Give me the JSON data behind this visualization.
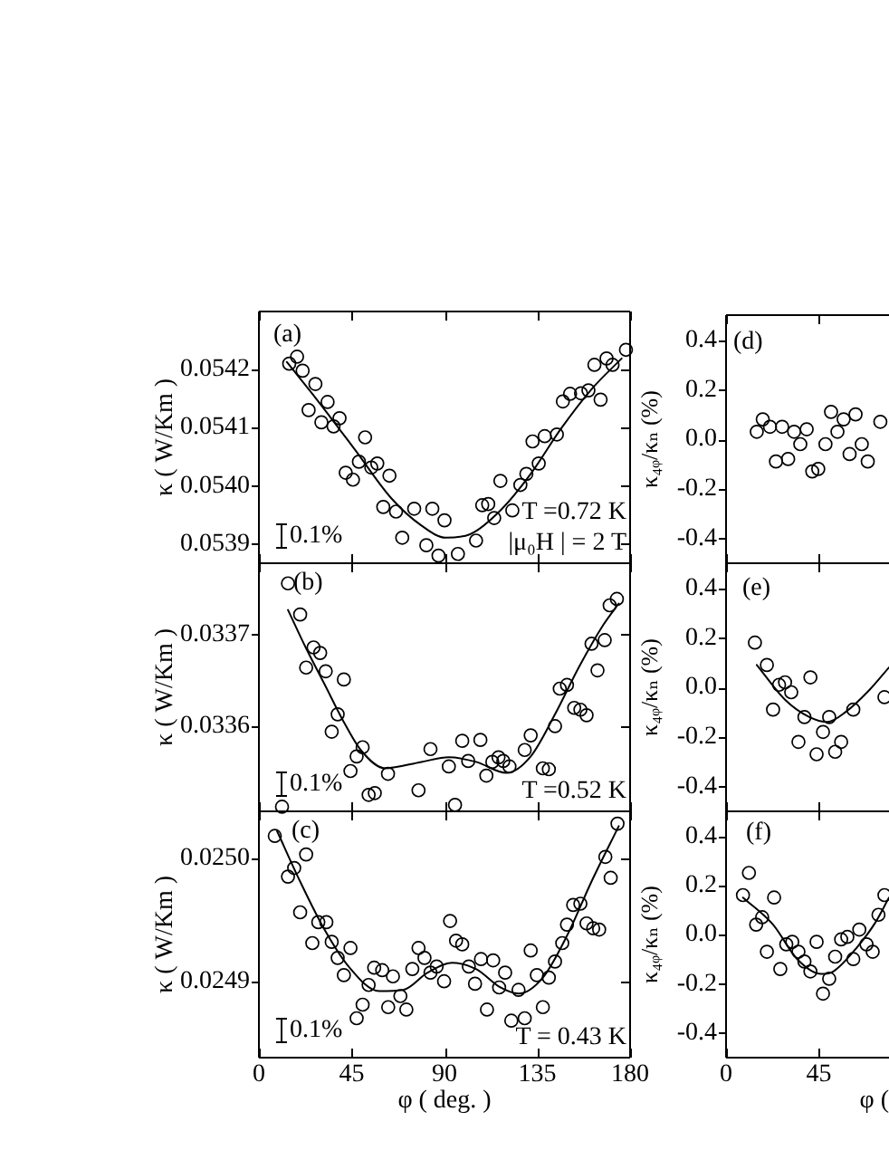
{
  "chart_data": [
    {
      "type": "scatter",
      "annotations": [
        "(a)",
        "0.1%",
        "T =0.72 K",
        "|μ₀H | = 2 T"
      ],
      "ylabel": "κ ( W/Km )",
      "xlim": [
        0,
        180
      ],
      "xticks": [
        0,
        45,
        90,
        135,
        180
      ],
      "ylim": [
        0.053866,
        0.0543
      ],
      "yticks": [
        0.0539,
        {
          "value": 0.054,
          "label": "0.0540"
        },
        0.0541,
        0.0542
      ],
      "tick_labels": "y",
      "marker": "circle",
      "series": [
        {
          "type": "scatter",
          "color": "#000000",
          "x": [
            14.7,
            18.5,
            21.2,
            24.1,
            27.4,
            30.3,
            33.3,
            36.2,
            39.1,
            42.1,
            45.6,
            48.5,
            51.5,
            54.5,
            57.4,
            60.3,
            63.3,
            66.5,
            69.5,
            75.3,
            81.2,
            84.1,
            87.1,
            90.0,
            96.5,
            105.3,
            108.3,
            111.2,
            114.1,
            117.1,
            122.9,
            126.8,
            129.7,
            132.7,
            135.7,
            138.6,
            144.5,
            147.4,
            150.9,
            156.2,
            159.8,
            162.7,
            165.7,
            168.6,
            171.5,
            178.0
          ],
          "values": [
            0.05421,
            0.054222,
            0.054198,
            0.05413,
            0.054175,
            0.054109,
            0.054144,
            0.054102,
            0.054116,
            0.054022,
            0.05401,
            0.054041,
            0.054083,
            0.054031,
            0.054038,
            0.053963,
            0.054017,
            0.053955,
            0.05391,
            0.05396,
            0.053897,
            0.05396,
            0.053879,
            0.05394,
            0.053882,
            0.053905,
            0.053966,
            0.053968,
            0.053944,
            0.054008,
            0.053957,
            0.054001,
            0.05402,
            0.054076,
            0.054038,
            0.054085,
            0.054088,
            0.054145,
            0.054158,
            0.054159,
            0.054164,
            0.054208,
            0.054148,
            0.054219,
            0.054208,
            0.054234
          ]
        },
        {
          "type": "line",
          "color": "#000000",
          "marker": "none",
          "x": [
            13.5,
            28.8,
            46.5,
            64.2,
            78.8,
            90.6,
            102.4,
            117.1,
            131.8,
            146.5,
            161.3,
            175.9
          ],
          "values": [
            0.054213,
            0.054145,
            0.054062,
            0.053978,
            0.053931,
            0.05391,
            0.053916,
            0.053957,
            0.05402,
            0.054098,
            0.054166,
            0.054219
          ]
        }
      ]
    },
    {
      "type": "scatter",
      "annotations": [
        "(b)",
        "0.1%",
        "T =0.52 K"
      ],
      "ylabel": "κ ( W/Km )",
      "xlim": [
        0,
        180
      ],
      "xticks": [
        0,
        45,
        90,
        135,
        180
      ],
      "ylim": [
        0.033507,
        0.033778
      ],
      "yticks": [
        0.0336,
        0.0337
      ],
      "tick_labels": "y",
      "marker": "circle",
      "series": [
        {
          "type": "scatter",
          "color": "#000000",
          "x": [
            11.2,
            14.1,
            20.0,
            22.9,
            26.5,
            29.7,
            32.4,
            35.3,
            38.2,
            41.2,
            44.4,
            47.4,
            50.3,
            53.2,
            56.2,
            62.6,
            77.4,
            83.2,
            92.1,
            95.1,
            98.6,
            101.5,
            107.4,
            110.3,
            113.2,
            116.2,
            118.5,
            121.5,
            128.9,
            131.8,
            137.7,
            140.6,
            143.6,
            145.9,
            149.4,
            152.9,
            155.9,
            158.9,
            161.3,
            164.2,
            167.7,
            170.1,
            173.6
          ],
          "values": [
            0.033512,
            0.033756,
            0.033722,
            0.033664,
            0.033686,
            0.03368,
            0.03366,
            0.033594,
            0.033613,
            0.033651,
            0.033551,
            0.033567,
            0.033577,
            0.033525,
            0.033527,
            0.033548,
            0.03353,
            0.033575,
            0.033556,
            0.033514,
            0.033584,
            0.033562,
            0.033585,
            0.033546,
            0.033561,
            0.033566,
            0.033562,
            0.033556,
            0.033574,
            0.03359,
            0.033554,
            0.033553,
            0.0336,
            0.033641,
            0.033645,
            0.03362,
            0.033618,
            0.033612,
            0.03369,
            0.033661,
            0.033694,
            0.033732,
            0.033739
          ]
        },
        {
          "type": "line",
          "color": "#000000",
          "marker": "none",
          "x": [
            14.1,
            22.9,
            31.8,
            40.6,
            49.4,
            61.2,
            78.8,
            92.1,
            105.3,
            120.0,
            131.8,
            143.6,
            155.3,
            167.1,
            174.5
          ],
          "values": [
            0.033727,
            0.033685,
            0.033646,
            0.033607,
            0.033574,
            0.033554,
            0.033561,
            0.033566,
            0.033561,
            0.033549,
            0.033567,
            0.033613,
            0.033665,
            0.033711,
            0.033734
          ]
        }
      ]
    },
    {
      "type": "scatter",
      "annotations": [
        "(c)",
        "0.1%",
        "T = 0.43 K"
      ],
      "xlabel": "φ ( deg. )",
      "ylabel": "κ ( W/Km )",
      "xlim": [
        0,
        180
      ],
      "xticks": [
        0,
        45,
        90,
        135,
        180
      ],
      "ylim": [
        0.024838,
        0.025038
      ],
      "yticks": [
        0.0249,
        {
          "value": 0.025,
          "label": "0.0250"
        }
      ],
      "marker": "circle",
      "series": [
        {
          "type": "scatter",
          "color": "#000000",
          "x": [
            7.7,
            14.1,
            17.1,
            20.0,
            22.9,
            25.9,
            28.8,
            32.7,
            35.3,
            38.2,
            41.2,
            44.4,
            47.4,
            50.3,
            53.2,
            55.9,
            59.8,
            62.7,
            65.0,
            68.6,
            71.5,
            74.4,
            77.4,
            80.3,
            83.2,
            86.2,
            89.8,
            92.7,
            95.6,
            98.6,
            101.8,
            104.8,
            107.7,
            110.6,
            113.6,
            116.5,
            119.4,
            122.4,
            125.9,
            128.9,
            131.8,
            134.8,
            137.7,
            140.6,
            143.6,
            147.1,
            149.4,
            152.4,
            155.9,
            158.9,
            162.1,
            165.0,
            168.0,
            170.6,
            173.9
          ],
          "values": [
            0.025018,
            0.024985,
            0.024992,
            0.024956,
            0.025003,
            0.024931,
            0.024948,
            0.024948,
            0.024932,
            0.024919,
            0.024905,
            0.024927,
            0.02487,
            0.024881,
            0.024897,
            0.024911,
            0.024909,
            0.024879,
            0.024904,
            0.024888,
            0.024877,
            0.02491,
            0.024927,
            0.024919,
            0.024907,
            0.024912,
            0.0249,
            0.024949,
            0.024933,
            0.02493,
            0.024912,
            0.024898,
            0.024918,
            0.024877,
            0.024917,
            0.024895,
            0.024907,
            0.024868,
            0.024893,
            0.02487,
            0.024925,
            0.024905,
            0.024879,
            0.024903,
            0.024916,
            0.024931,
            0.024946,
            0.024962,
            0.024963,
            0.024947,
            0.024943,
            0.024942,
            0.025001,
            0.024984,
            0.025028
          ]
        },
        {
          "type": "line",
          "color": "#000000",
          "marker": "none",
          "x": [
            8.8,
            20.0,
            31.8,
            43.5,
            58.3,
            70.0,
            81.8,
            93.6,
            105.3,
            117.1,
            125.9,
            137.7,
            149.4,
            161.3,
            174.5
          ],
          "values": [
            0.025022,
            0.024981,
            0.024942,
            0.024912,
            0.024892,
            0.024893,
            0.024907,
            0.024915,
            0.02491,
            0.024895,
            0.02489,
            0.024903,
            0.024937,
            0.024981,
            0.025026
          ]
        }
      ]
    },
    {
      "type": "scatter",
      "annotations": [
        "(d)"
      ],
      "ylabel": "κ₄ᵩ/κₙ (%)",
      "xlim": [
        0,
        79
      ],
      "xticks": [
        0,
        45
      ],
      "ylim": [
        -0.5,
        0.5
      ],
      "yticks": [
        -0.4,
        -0.2,
        {
          "value": 0,
          "label": "0.0"
        },
        0.2,
        0.4
      ],
      "tick_labels": "y",
      "marker": "circle",
      "series": [
        {
          "type": "scatter",
          "color": "#000000",
          "x": [
            14.9,
            17.8,
            21.3,
            24.2,
            27.2,
            30.1,
            33.0,
            36.0,
            39.1,
            41.8,
            44.7,
            48.2,
            50.9,
            54.0,
            57.0,
            59.9,
            62.8,
            65.8,
            68.7,
            74.8
          ],
          "values": [
            0.03,
            0.08,
            0.05,
            -0.09,
            0.05,
            -0.08,
            0.03,
            -0.02,
            0.04,
            -0.13,
            -0.12,
            -0.02,
            0.11,
            0.03,
            0.08,
            -0.06,
            0.1,
            -0.02,
            -0.09,
            0.07
          ]
        }
      ]
    },
    {
      "type": "scatter",
      "annotations": [
        "(e)"
      ],
      "ylabel": "κ₄ᵩ/κₙ (%)",
      "xlim": [
        0,
        79
      ],
      "xticks": [
        0,
        45
      ],
      "ylim": [
        -0.5,
        0.5
      ],
      "yticks": [
        -0.4,
        -0.2,
        {
          "value": 0,
          "label": "0.0"
        },
        0.2,
        0.4
      ],
      "tick_labels": "y",
      "marker": "circle",
      "series": [
        {
          "type": "scatter",
          "color": "#000000",
          "x": [
            14.0,
            19.8,
            22.8,
            25.7,
            28.6,
            31.6,
            35.1,
            38.0,
            40.9,
            43.9,
            47.0,
            50.0,
            52.9,
            55.8,
            61.7,
            76.8
          ],
          "values": [
            0.18,
            0.09,
            -0.09,
            0.01,
            0.02,
            -0.02,
            -0.22,
            -0.12,
            0.04,
            -0.27,
            -0.18,
            -0.12,
            -0.26,
            -0.22,
            -0.09,
            -0.04
          ]
        },
        {
          "type": "line",
          "color": "#000000",
          "marker": "none",
          "x": [
            14.9,
            28.6,
            40.4,
            49.1,
            57.9,
            69.6,
            79.0
          ],
          "values": [
            0.09,
            -0.05,
            -0.12,
            -0.14,
            -0.1,
            -0.01,
            0.08
          ]
        }
      ]
    },
    {
      "type": "scatter",
      "annotations": [
        "(f)"
      ],
      "xlabel": "φ (",
      "ylabel": "κ₄ᵩ/κₙ (%)",
      "xlim": [
        0,
        79
      ],
      "xticks": [
        0,
        45
      ],
      "ylim": [
        -0.5,
        0.5
      ],
      "yticks": [
        -0.4,
        -0.2,
        {
          "value": 0,
          "label": "0.0"
        },
        0.2,
        0.4
      ],
      "marker": "circle",
      "series": [
        {
          "type": "scatter",
          "color": "#000000",
          "x": [
            8.2,
            11.1,
            14.6,
            17.5,
            19.8,
            23.3,
            26.3,
            29.2,
            32.1,
            35.1,
            38.0,
            40.9,
            43.9,
            47.0,
            50.0,
            52.9,
            55.8,
            58.8,
            61.7,
            64.6,
            68.1,
            71.1,
            73.9,
            76.8
          ],
          "values": [
            0.16,
            0.25,
            0.04,
            0.07,
            -0.07,
            0.15,
            -0.14,
            -0.04,
            -0.03,
            -0.07,
            -0.11,
            -0.15,
            -0.03,
            -0.24,
            -0.18,
            -0.09,
            -0.02,
            -0.01,
            -0.1,
            0.02,
            -0.04,
            -0.07,
            0.08,
            0.16
          ]
        },
        {
          "type": "line",
          "color": "#000000",
          "marker": "none",
          "x": [
            8.2,
            22.8,
            34.5,
            46.1,
            52.0,
            63.7,
            72.5,
            79.0
          ],
          "values": [
            0.15,
            0.04,
            -0.1,
            -0.16,
            -0.15,
            -0.05,
            0.05,
            0.15
          ]
        }
      ]
    }
  ]
}
